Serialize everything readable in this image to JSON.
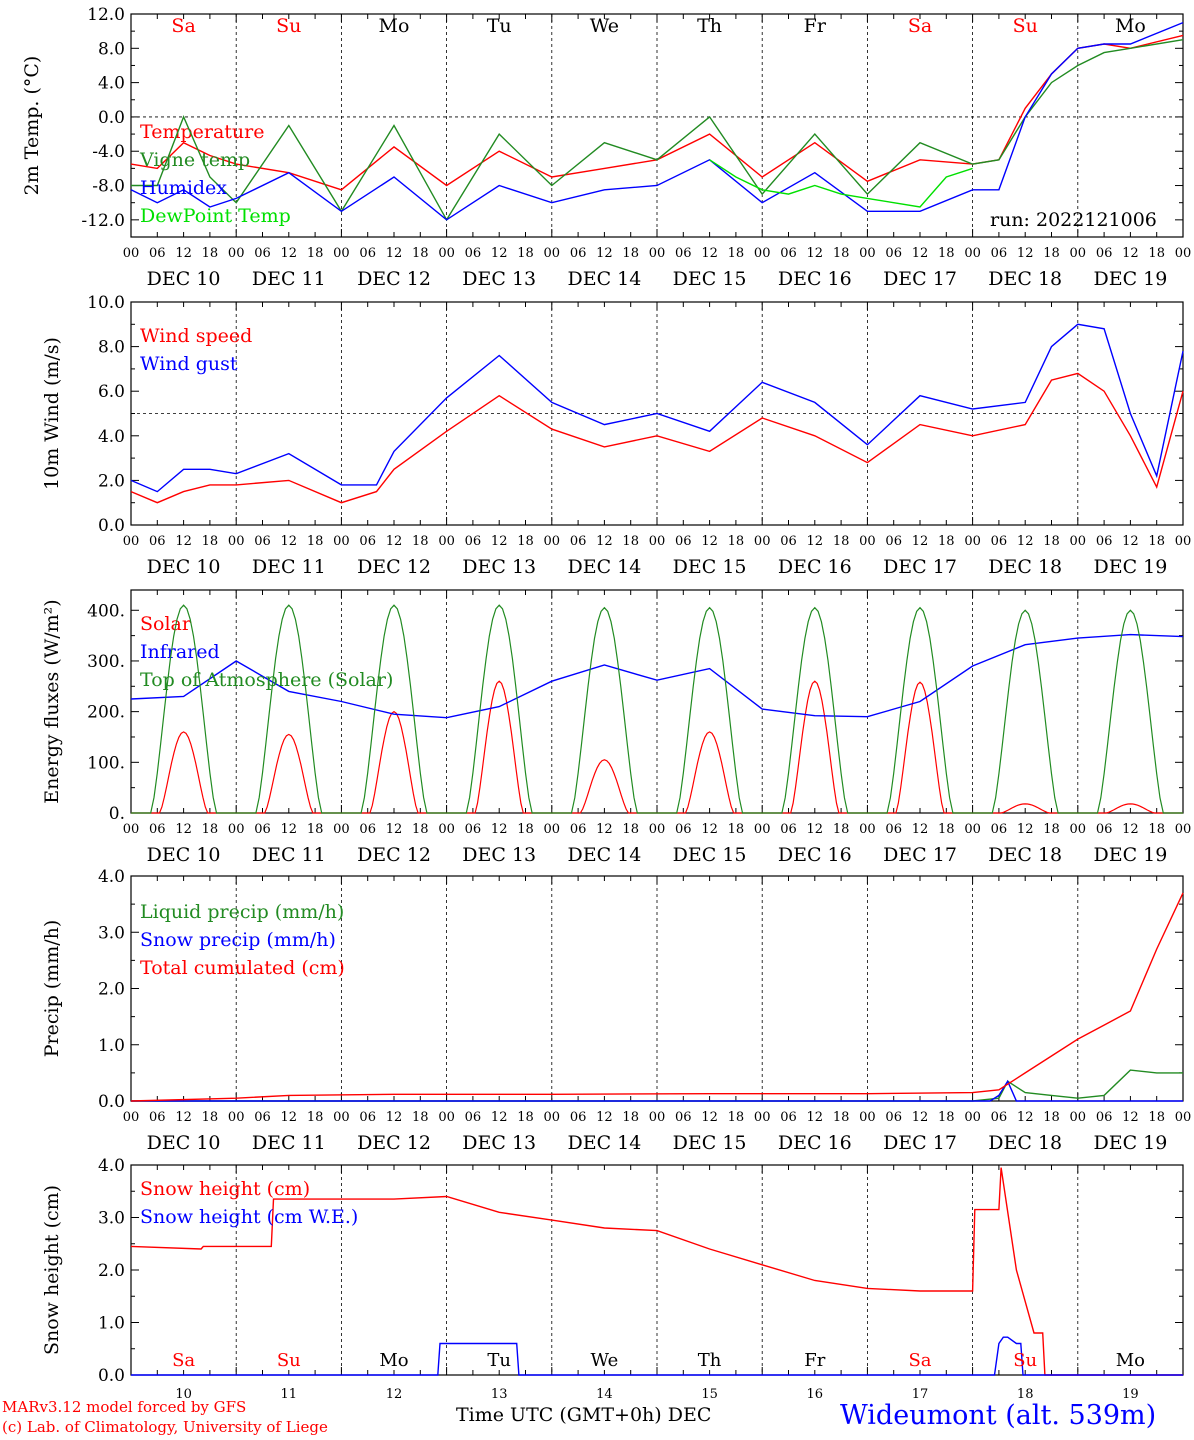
{
  "station": "Wideumont (alt. 539m)",
  "credits": [
    "MARv3.12 model forced by GFS",
    "(c) Lab. of Climatology, University of Liege"
  ],
  "x_title": "Time UTC (GMT+0h) DEC",
  "run_label": "run: 2022121006",
  "colors": {
    "red": "#ff0000",
    "green": "#228b22",
    "blue": "#0000ff",
    "lightgreen": "#00e000",
    "purple": "#800080"
  },
  "weekday_labels": [
    "Sa",
    "Su",
    "Mo",
    "Tu",
    "We",
    "Th",
    "Fr",
    "Sa",
    "Su",
    "Mo"
  ],
  "weekend_flags": [
    true,
    true,
    false,
    false,
    false,
    false,
    false,
    true,
    true,
    false
  ],
  "date_labels": [
    "DEC 10",
    "DEC 11",
    "DEC 12",
    "DEC 13",
    "DEC 14",
    "DEC 15",
    "DEC 16",
    "DEC 17",
    "DEC 18",
    "DEC 19"
  ],
  "hour_labels": [
    "00",
    "06",
    "12",
    "18"
  ],
  "final_hour_label": "00",
  "bottom_day_numbers": [
    "10",
    "11",
    "12",
    "13",
    "14",
    "15",
    "16",
    "17",
    "18",
    "19"
  ],
  "chart_data": [
    {
      "type": "line",
      "ylabel": "2m Temp. (°C)",
      "ylim": [
        -14,
        12
      ],
      "yticks": [
        12,
        8,
        4,
        0,
        -4,
        -8,
        -12
      ],
      "ytick_labels": [
        "12.0",
        "8.0",
        "4.0",
        "0.0",
        "-4.0",
        "-8.0",
        "-12.0"
      ],
      "hline": 0,
      "x_unit": "hours since DEC 10 00 UTC",
      "series": [
        {
          "name": "Temperature",
          "color": "red",
          "x": [
            0,
            6,
            12,
            18,
            24,
            36,
            48,
            60,
            72,
            84,
            96,
            108,
            120,
            132,
            144,
            156,
            168,
            180,
            192,
            198,
            204,
            210,
            216,
            222,
            228,
            240
          ],
          "values": [
            -5.5,
            -6,
            -3,
            -4.5,
            -5.5,
            -6.5,
            -8.5,
            -3.5,
            -8,
            -4,
            -7,
            -6,
            -5,
            -2,
            -7,
            -3,
            -7.5,
            -5,
            -5.5,
            -5,
            1,
            5,
            8,
            8.5,
            8,
            9.5
          ]
        },
        {
          "name": "Vigne temp",
          "color": "green",
          "x": [
            0,
            6,
            12,
            18,
            24,
            36,
            48,
            60,
            72,
            84,
            96,
            108,
            120,
            132,
            144,
            156,
            168,
            180,
            192,
            198,
            204,
            210,
            216,
            222,
            228,
            240
          ],
          "values": [
            -8,
            -8,
            0,
            -7,
            -10,
            -1,
            -11,
            -1,
            -12,
            -2,
            -8,
            -3,
            -5,
            0,
            -9,
            -2,
            -9,
            -3,
            -5.5,
            -5,
            0,
            4,
            6,
            7.5,
            8,
            9
          ]
        },
        {
          "name": "Humidex",
          "color": "blue",
          "x": [
            0,
            6,
            12,
            18,
            24,
            36,
            48,
            60,
            72,
            84,
            96,
            108,
            120,
            132,
            144,
            156,
            168,
            180,
            192,
            198,
            204,
            210,
            216,
            222,
            228,
            240
          ],
          "values": [
            -8.5,
            -10,
            -8.5,
            -10.5,
            -9.5,
            -6.5,
            -11,
            -7,
            -12,
            -8,
            -10,
            -8.5,
            -8,
            -5,
            -10,
            -6.5,
            -11,
            -11,
            -8.5,
            -8.5,
            0,
            5,
            8,
            8.5,
            8.5,
            11
          ]
        },
        {
          "name": "DewPoint Temp",
          "color": "lightgreen",
          "x": [
            132,
            138,
            144,
            150,
            156,
            162,
            168,
            174,
            180,
            186,
            192
          ],
          "values": [
            -5,
            -7,
            -8.5,
            -9,
            -8,
            -9,
            -9.5,
            -10,
            -10.5,
            -7,
            -6
          ]
        }
      ]
    },
    {
      "type": "line",
      "ylabel": "10m Wind (m/s)",
      "ylim": [
        0,
        10
      ],
      "yticks": [
        10,
        8,
        6,
        4,
        2,
        0
      ],
      "ytick_labels": [
        "10.0",
        "8.0",
        "6.0",
        "4.0",
        "2.0",
        "0.0"
      ],
      "hline": 5,
      "x_unit": "hours since DEC 10 00 UTC",
      "series": [
        {
          "name": "Wind speed",
          "color": "red",
          "x": [
            0,
            6,
            12,
            18,
            24,
            36,
            48,
            56,
            60,
            72,
            84,
            96,
            108,
            120,
            132,
            144,
            156,
            168,
            180,
            192,
            204,
            210,
            216,
            222,
            228,
            234,
            240
          ],
          "values": [
            1.5,
            1,
            1.5,
            1.8,
            1.8,
            2,
            1,
            1.5,
            2.5,
            4.2,
            5.8,
            4.3,
            3.5,
            4,
            3.3,
            4.8,
            4,
            2.8,
            4.5,
            4,
            4.5,
            6.5,
            6.8,
            6,
            4,
            1.7,
            6
          ]
        },
        {
          "name": "Wind gust",
          "color": "blue",
          "x": [
            0,
            6,
            12,
            18,
            24,
            36,
            48,
            56,
            60,
            72,
            84,
            96,
            108,
            120,
            132,
            144,
            156,
            168,
            180,
            192,
            204,
            210,
            216,
            222,
            228,
            234,
            240
          ],
          "values": [
            2,
            1.5,
            2.5,
            2.5,
            2.3,
            3.2,
            1.8,
            1.8,
            3.3,
            5.7,
            7.6,
            5.5,
            4.5,
            5,
            4.2,
            6.4,
            5.5,
            3.6,
            5.8,
            5.2,
            5.5,
            8,
            9,
            8.8,
            5,
            2.2,
            7.8
          ]
        }
      ]
    },
    {
      "type": "line",
      "ylabel": "Energy fluxes (W/m²)",
      "ylim": [
        0,
        440
      ],
      "yticks": [
        400,
        300,
        200,
        100,
        0
      ],
      "ytick_labels": [
        "400.",
        "300.",
        "200.",
        "100.",
        "0."
      ],
      "x_unit": "hours since DEC 10 00 UTC",
      "series": [
        {
          "name": "Solar",
          "color": "red",
          "day_peaks": [
            160,
            155,
            200,
            260,
            105,
            160,
            260,
            258,
            18,
            18
          ]
        },
        {
          "name": "Infrared",
          "color": "blue",
          "x": [
            0,
            12,
            24,
            36,
            48,
            60,
            72,
            84,
            96,
            108,
            120,
            132,
            144,
            156,
            168,
            180,
            192,
            204,
            216,
            228,
            240
          ],
          "values": [
            225,
            230,
            300,
            240,
            220,
            195,
            188,
            210,
            260,
            292,
            262,
            285,
            205,
            192,
            190,
            220,
            290,
            332,
            345,
            352,
            348
          ]
        },
        {
          "name": "Top of Atmosphere (Solar)",
          "color": "green",
          "day_peaks": [
            410,
            410,
            410,
            410,
            405,
            405,
            405,
            405,
            400,
            400
          ]
        }
      ]
    },
    {
      "type": "line",
      "ylabel": "Precip (mm/h)",
      "ylim": [
        0,
        4
      ],
      "yticks": [
        4,
        3,
        2,
        1,
        0
      ],
      "ytick_labels": [
        "4.0",
        "3.0",
        "2.0",
        "1.0",
        "0.0"
      ],
      "x_unit": "hours since DEC 10 00 UTC",
      "series": [
        {
          "name": "Liquid precip (mm/h)",
          "color": "green",
          "x": [
            0,
            192,
            198,
            200,
            204,
            210,
            216,
            222,
            228,
            234,
            240
          ],
          "values": [
            0,
            0,
            0.05,
            0.35,
            0.15,
            0.1,
            0.05,
            0.1,
            0.55,
            0.5,
            0.5
          ]
        },
        {
          "name": "Snow precip (mm/h)",
          "color": "blue",
          "x": [
            0,
            196,
            198,
            200,
            202,
            240
          ],
          "values": [
            0,
            0,
            0.1,
            0.35,
            0,
            0
          ]
        },
        {
          "name": "Total cumulated (cm)",
          "color": "red",
          "x": [
            0,
            24,
            36,
            60,
            96,
            132,
            168,
            192,
            198,
            204,
            210,
            216,
            222,
            228,
            234,
            240
          ],
          "values": [
            0,
            0.05,
            0.1,
            0.12,
            0.12,
            0.13,
            0.13,
            0.15,
            0.2,
            0.5,
            0.8,
            1.1,
            1.35,
            1.6,
            2.7,
            3.7
          ]
        }
      ]
    },
    {
      "type": "line",
      "ylabel": "Snow height (cm)",
      "ylim": [
        0,
        4
      ],
      "yticks": [
        4,
        3,
        2,
        1,
        0
      ],
      "ytick_labels": [
        "4.0",
        "3.0",
        "2.0",
        "1.0",
        "0.0"
      ],
      "x_unit": "hours since DEC 10 00 UTC",
      "series": [
        {
          "name": "Snow height (cm)",
          "color": "red",
          "x": [
            0,
            16,
            16.5,
            32,
            32.5,
            42,
            60,
            72,
            84,
            96,
            108,
            120,
            132,
            144,
            156,
            168,
            180,
            192,
            192.5,
            198,
            198.5,
            202,
            206,
            208,
            208.5,
            240
          ],
          "values": [
            2.45,
            2.4,
            2.45,
            2.45,
            3.35,
            3.35,
            3.35,
            3.4,
            3.1,
            2.95,
            2.8,
            2.75,
            2.4,
            2.1,
            1.8,
            1.65,
            1.6,
            1.6,
            3.15,
            3.15,
            3.95,
            2.0,
            0.8,
            0.8,
            0,
            0
          ]
        },
        {
          "name": "Snow height (cm W.E.)",
          "color": "blue",
          "x": [
            0,
            70,
            70.5,
            88,
            88.5,
            197,
            198,
            199,
            200,
            202,
            203,
            203.5,
            240
          ],
          "values": [
            0,
            0,
            0.6,
            0.6,
            0,
            0,
            0.6,
            0.72,
            0.72,
            0.6,
            0.6,
            0,
            0
          ]
        }
      ]
    }
  ]
}
